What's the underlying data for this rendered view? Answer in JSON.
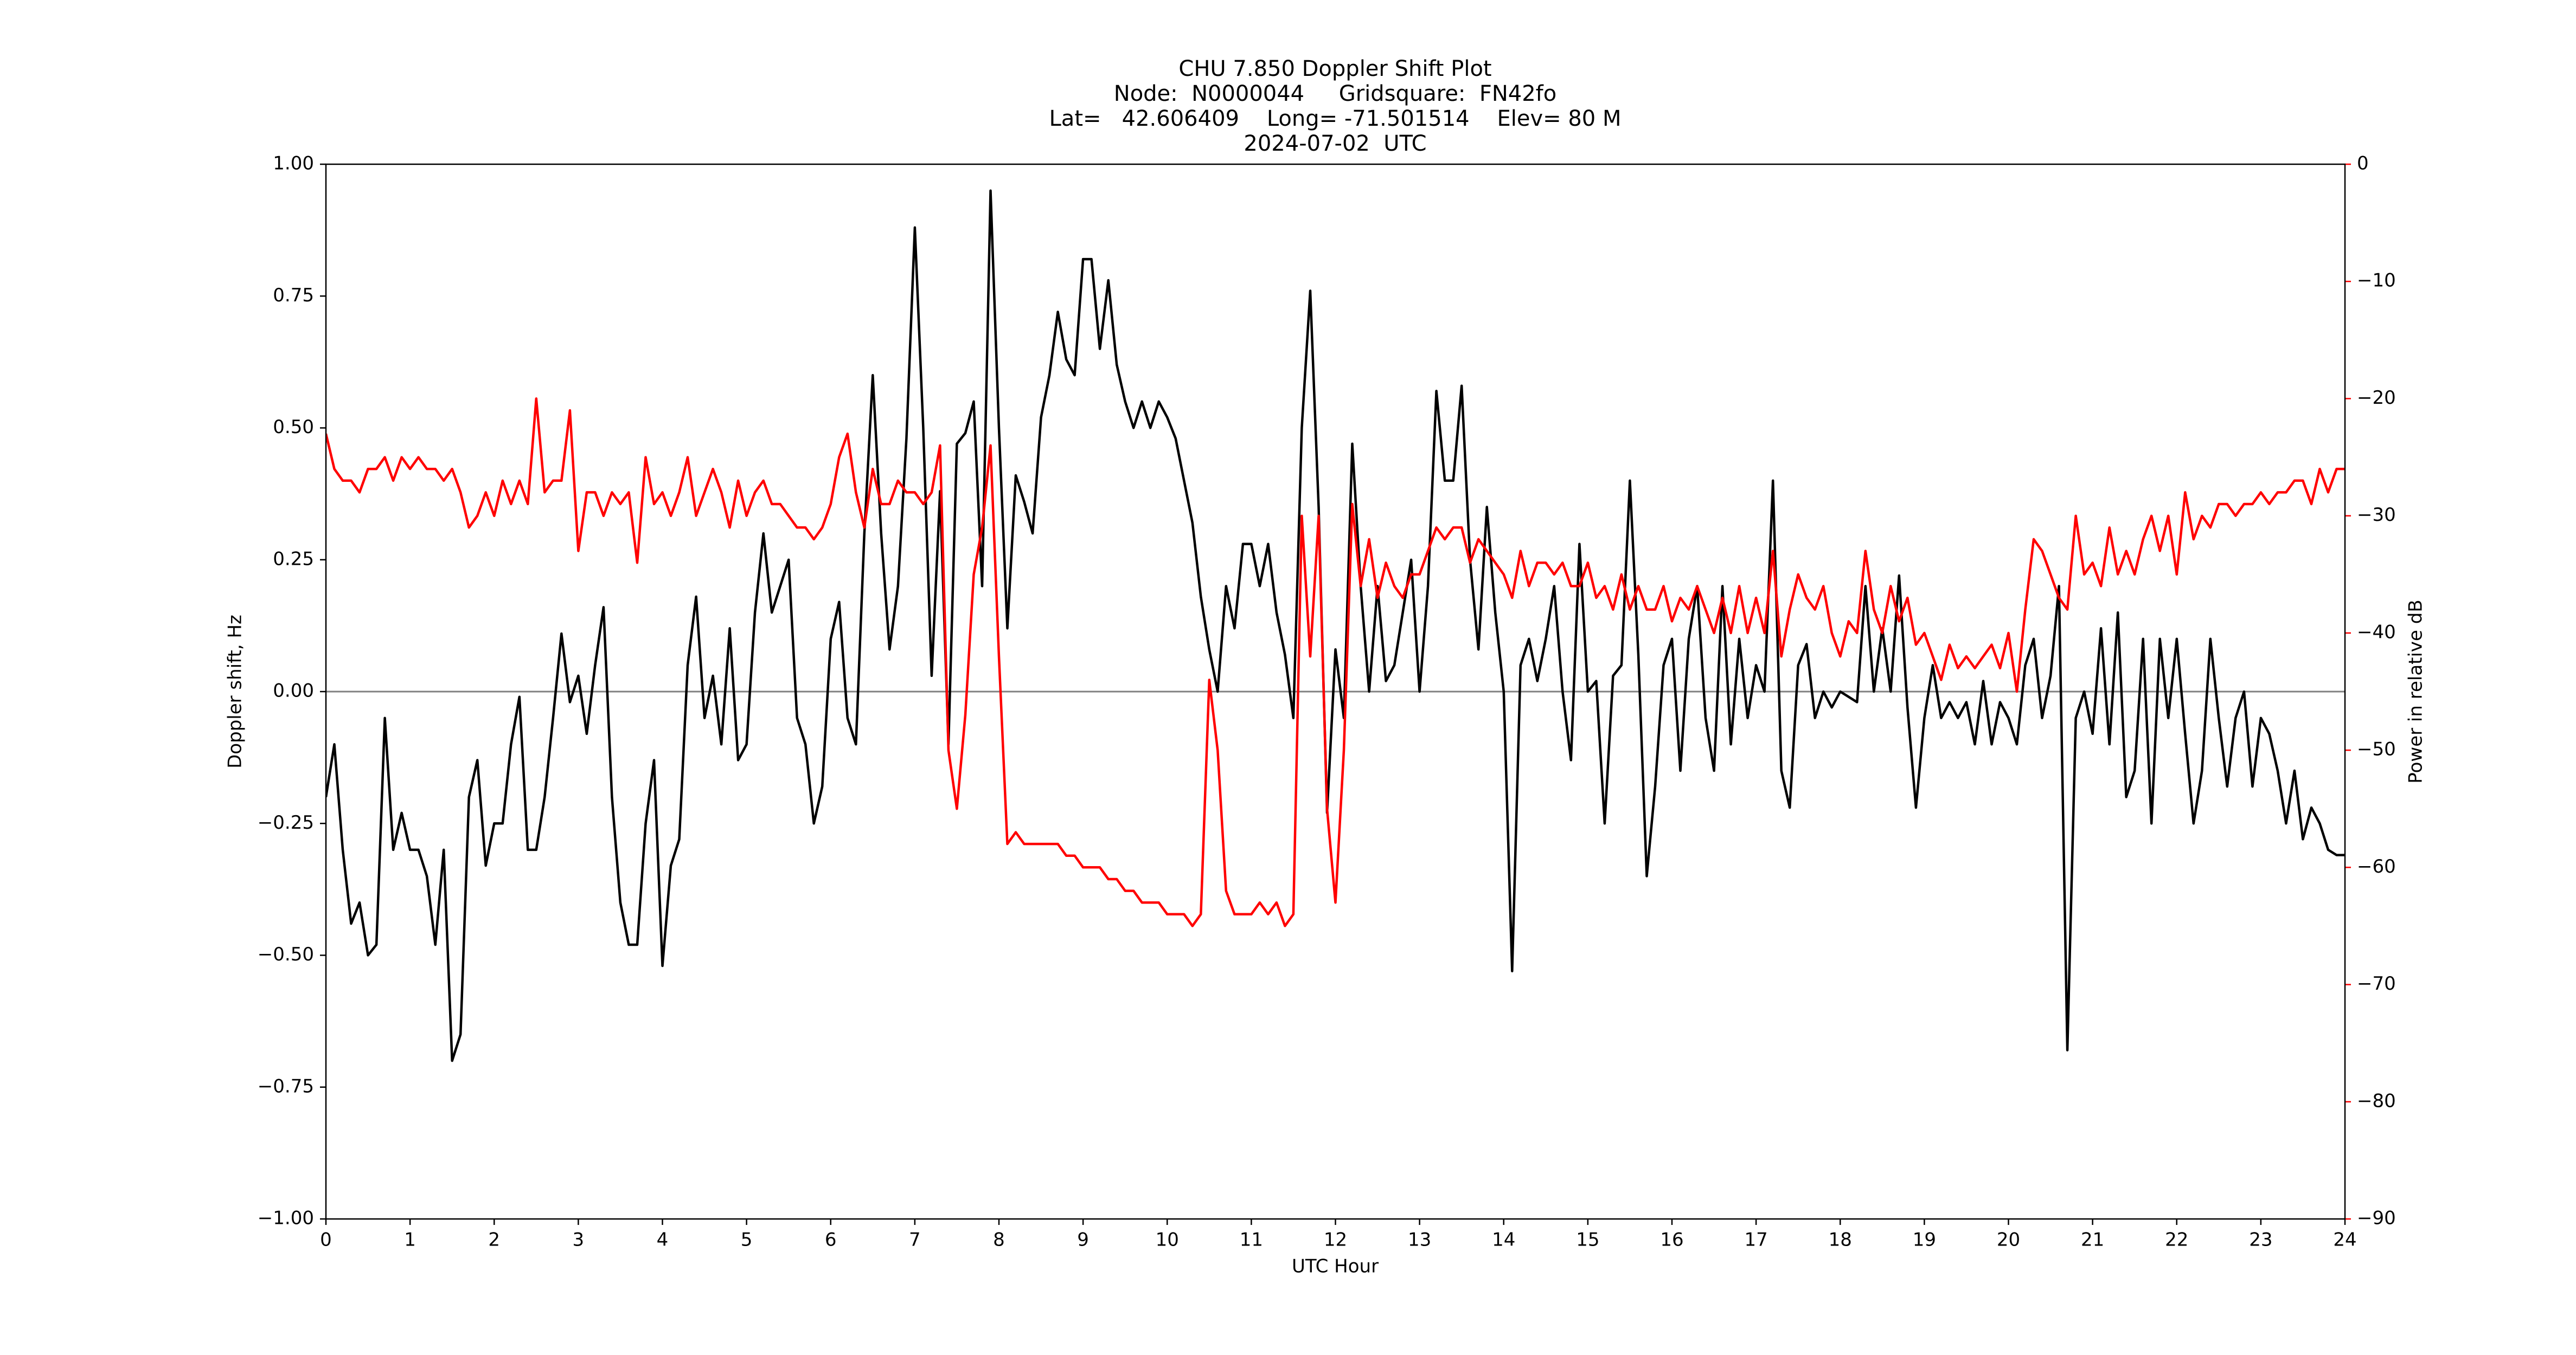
{
  "chart_data": {
    "type": "line",
    "title": [
      "CHU 7.850 Doppler Shift Plot",
      "Node:  N0000044     Gridsquare:  FN42fo",
      "Lat=   42.606409    Long= -71.501514    Elev= 80 M",
      "2024-07-02  UTC"
    ],
    "xlabel": "UTC Hour",
    "ylabel": "Doppler shift, Hz",
    "y2label": "Power in relative dB",
    "xlim": [
      0,
      24
    ],
    "xticks": [
      0,
      1,
      2,
      3,
      4,
      5,
      6,
      7,
      8,
      9,
      10,
      11,
      12,
      13,
      14,
      15,
      16,
      17,
      18,
      19,
      20,
      21,
      22,
      23,
      24
    ],
    "ylim": [
      -1,
      1
    ],
    "yticks": [
      {
        "value": -1,
        "label": "−1.00"
      },
      {
        "value": -0.75,
        "label": "−0.75"
      },
      {
        "value": -0.5,
        "label": "−0.50"
      },
      {
        "value": -0.25,
        "label": "−0.25"
      },
      {
        "value": 0,
        "label": "0.00"
      },
      {
        "value": 0.25,
        "label": "0.25"
      },
      {
        "value": 0.5,
        "label": "0.50"
      },
      {
        "value": 0.75,
        "label": "0.75"
      },
      {
        "value": 1,
        "label": "1.00"
      }
    ],
    "y2lim": [
      -90,
      0
    ],
    "y2ticks": [
      {
        "value": -90,
        "label": "−90"
      },
      {
        "value": -80,
        "label": "−80"
      },
      {
        "value": -70,
        "label": "−70"
      },
      {
        "value": -60,
        "label": "−60"
      },
      {
        "value": -50,
        "label": "−50"
      },
      {
        "value": -40,
        "label": "−40"
      },
      {
        "value": -30,
        "label": "−30"
      },
      {
        "value": -20,
        "label": "−20"
      },
      {
        "value": -10,
        "label": "−10"
      },
      0
    ],
    "axhline": 0,
    "axhline_color": "#808080",
    "x": [
      0,
      0.1,
      0.2,
      0.3,
      0.4,
      0.5,
      0.6,
      0.7,
      0.8,
      0.9,
      1,
      1.1,
      1.2,
      1.3,
      1.4,
      1.5,
      1.6,
      1.7,
      1.8,
      1.9,
      2,
      2.1,
      2.2,
      2.3,
      2.4,
      2.5,
      2.6,
      2.7,
      2.8,
      2.9,
      3,
      3.1,
      3.2,
      3.3,
      3.4,
      3.5,
      3.6,
      3.7,
      3.8,
      3.9,
      4,
      4.1,
      4.2,
      4.3,
      4.4,
      4.5,
      4.6,
      4.7,
      4.8,
      4.9,
      5,
      5.1,
      5.2,
      5.3,
      5.4,
      5.5,
      5.6,
      5.7,
      5.8,
      5.9,
      6,
      6.1,
      6.2,
      6.3,
      6.4,
      6.5,
      6.6,
      6.7,
      6.8,
      6.9,
      7,
      7.1,
      7.2,
      7.3,
      7.4,
      7.5,
      7.6,
      7.7,
      7.8,
      7.9,
      8,
      8.1,
      8.2,
      8.3,
      8.4,
      8.5,
      8.6,
      8.7,
      8.8,
      8.9,
      9,
      9.1,
      9.2,
      9.3,
      9.4,
      9.5,
      9.6,
      9.7,
      9.8,
      9.9,
      10,
      10.1,
      10.2,
      10.3,
      10.4,
      10.5,
      10.6,
      10.7,
      10.8,
      10.9,
      11,
      11.1,
      11.2,
      11.3,
      11.4,
      11.5,
      11.6,
      11.7,
      11.8,
      11.9,
      12,
      12.1,
      12.2,
      12.3,
      12.4,
      12.5,
      12.6,
      12.7,
      12.8,
      12.9,
      13,
      13.1,
      13.2,
      13.3,
      13.4,
      13.5,
      13.6,
      13.7,
      13.8,
      13.9,
      14,
      14.1,
      14.2,
      14.3,
      14.4,
      14.5,
      14.6,
      14.7,
      14.8,
      14.9,
      15,
      15.1,
      15.2,
      15.3,
      15.4,
      15.5,
      15.6,
      15.7,
      15.8,
      15.9,
      16,
      16.1,
      16.2,
      16.3,
      16.4,
      16.5,
      16.6,
      16.7,
      16.8,
      16.9,
      17,
      17.1,
      17.2,
      17.3,
      17.4,
      17.5,
      17.6,
      17.7,
      17.8,
      17.9,
      18,
      18.1,
      18.2,
      18.3,
      18.4,
      18.5,
      18.6,
      18.7,
      18.8,
      18.9,
      19,
      19.1,
      19.2,
      19.3,
      19.4,
      19.5,
      19.6,
      19.7,
      19.8,
      19.9,
      20,
      20.1,
      20.2,
      20.3,
      20.4,
      20.5,
      20.6,
      20.7,
      20.8,
      20.9,
      21,
      21.1,
      21.2,
      21.3,
      21.4,
      21.5,
      21.6,
      21.7,
      21.8,
      21.9,
      22,
      22.1,
      22.2,
      22.3,
      22.4,
      22.5,
      22.6,
      22.7,
      22.8,
      22.9,
      23,
      23.1,
      23.2,
      23.3,
      23.4,
      23.5,
      23.6,
      23.7,
      23.8,
      23.9,
      24
    ],
    "series": [
      {
        "color": "#000000",
        "values": [
          -0.2,
          -0.1,
          -0.3,
          -0.44,
          -0.4,
          -0.5,
          -0.48,
          -0.05,
          -0.3,
          -0.23,
          -0.3,
          -0.3,
          -0.35,
          -0.48,
          -0.3,
          -0.7,
          -0.65,
          -0.2,
          -0.13,
          -0.33,
          -0.25,
          -0.25,
          -0.1,
          -0.01,
          -0.3,
          -0.3,
          -0.2,
          -0.05,
          0.11,
          -0.02,
          0.03,
          -0.08,
          0.05,
          0.16,
          -0.2,
          -0.4,
          -0.48,
          -0.48,
          -0.25,
          -0.13,
          -0.52,
          -0.33,
          -0.28,
          0.05,
          0.18,
          -0.05,
          0.03,
          -0.1,
          0.12,
          -0.13,
          -0.1,
          0.15,
          0.3,
          0.15,
          0.2,
          0.25,
          -0.05,
          -0.1,
          -0.25,
          -0.18,
          0.1,
          0.17,
          -0.05,
          -0.1,
          0.3,
          0.6,
          0.3,
          0.08,
          0.2,
          0.48,
          0.88,
          0.5,
          0.03,
          0.38,
          -0.1,
          0.47,
          0.49,
          0.55,
          0.2,
          0.95,
          0.5,
          0.12,
          0.41,
          0.36,
          0.3,
          0.52,
          0.6,
          0.72,
          0.63,
          0.6,
          0.82,
          0.82,
          0.65,
          0.78,
          0.62,
          0.55,
          0.5,
          0.55,
          0.5,
          0.55,
          0.52,
          0.48,
          0.4,
          0.32,
          0.18,
          0.08,
          0.0,
          0.2,
          0.12,
          0.28,
          0.28,
          0.2,
          0.28,
          0.15,
          0.07,
          -0.05,
          0.5,
          0.76,
          0.35,
          -0.23,
          0.08,
          -0.05,
          0.47,
          0.2,
          0.0,
          0.2,
          0.02,
          0.05,
          0.15,
          0.25,
          0.0,
          0.2,
          0.57,
          0.4,
          0.4,
          0.58,
          0.25,
          0.08,
          0.35,
          0.15,
          0.0,
          -0.53,
          0.05,
          0.1,
          0.02,
          0.1,
          0.2,
          0.0,
          -0.13,
          0.28,
          0.0,
          0.02,
          -0.25,
          0.03,
          0.05,
          0.4,
          0.07,
          -0.35,
          -0.18,
          0.05,
          0.1,
          -0.15,
          0.1,
          0.2,
          -0.05,
          -0.15,
          0.2,
          -0.1,
          0.1,
          -0.05,
          0.05,
          0.0,
          0.4,
          -0.15,
          -0.22,
          0.05,
          0.09,
          -0.05,
          0.0,
          -0.03,
          0.0,
          -0.01,
          -0.02,
          0.2,
          0.0,
          0.12,
          0.0,
          0.22,
          -0.03,
          -0.22,
          -0.05,
          0.05,
          -0.05,
          -0.02,
          -0.05,
          -0.02,
          -0.1,
          0.02,
          -0.1,
          -0.02,
          -0.05,
          -0.1,
          0.05,
          0.1,
          -0.05,
          0.03,
          0.2,
          -0.68,
          -0.05,
          0.0,
          -0.08,
          0.12,
          -0.1,
          0.15,
          -0.2,
          -0.15,
          0.1,
          -0.25,
          0.1,
          -0.05,
          0.1,
          -0.08,
          -0.25,
          -0.15,
          0.1,
          -0.05,
          -0.18,
          -0.05,
          0.0,
          -0.18,
          -0.05,
          -0.08,
          -0.15,
          -0.25,
          -0.15,
          -0.28,
          -0.22,
          -0.25,
          -0.3,
          -0.31,
          -0.31
        ]
      },
      {
        "color": "#ff0000",
        "axis": "y2",
        "values": [
          -23,
          -26,
          -27,
          -27,
          -28,
          -26,
          -26,
          -25,
          -27,
          -25,
          -26,
          -25,
          -26,
          -26,
          -27,
          -26,
          -28,
          -31,
          -30,
          -28,
          -30,
          -27,
          -29,
          -27,
          -29,
          -20,
          -28,
          -27,
          -27,
          -21,
          -33,
          -28,
          -28,
          -30,
          -28,
          -29,
          -28,
          -34,
          -25,
          -29,
          -28,
          -30,
          -28,
          -25,
          -30,
          -28,
          -26,
          -28,
          -31,
          -27,
          -30,
          -28,
          -27,
          -29,
          -29,
          -30,
          -31,
          -31,
          -32,
          -31,
          -29,
          -25,
          -23,
          -28,
          -31,
          -26,
          -29,
          -29,
          -27,
          -28,
          -28,
          -29,
          -28,
          -24,
          -50,
          -55,
          -47,
          -35,
          -31,
          -24,
          -42,
          -58,
          -57,
          -58,
          -58,
          -58,
          -58,
          -58,
          -59,
          -59,
          -60,
          -60,
          -60,
          -61,
          -61,
          -62,
          -62,
          -63,
          -63,
          -63,
          -64,
          -64,
          -64,
          -65,
          -64,
          -44,
          -50,
          -62,
          -64,
          -64,
          -64,
          -63,
          -64,
          -63,
          -65,
          -64,
          -30,
          -42,
          -30,
          -55,
          -63,
          -50,
          -29,
          -36,
          -32,
          -37,
          -34,
          -36,
          -37,
          -35,
          -35,
          -33,
          -31,
          -32,
          -31,
          -31,
          -34,
          -32,
          -33,
          -34,
          -35,
          -37,
          -33,
          -36,
          -34,
          -34,
          -35,
          -34,
          -36,
          -36,
          -34,
          -37,
          -36,
          -38,
          -35,
          -38,
          -36,
          -38,
          -38,
          -36,
          -39,
          -37,
          -38,
          -36,
          -38,
          -40,
          -37,
          -40,
          -36,
          -40,
          -37,
          -40,
          -33,
          -42,
          -38,
          -35,
          -37,
          -38,
          -36,
          -40,
          -42,
          -39,
          -40,
          -33,
          -38,
          -40,
          -36,
          -39,
          -37,
          -41,
          -40,
          -42,
          -44,
          -41,
          -43,
          -42,
          -43,
          -42,
          -41,
          -43,
          -40,
          -45,
          -38,
          -32,
          -33,
          -35,
          -37,
          -38,
          -30,
          -35,
          -34,
          -36,
          -31,
          -35,
          -33,
          -35,
          -32,
          -30,
          -33,
          -30,
          -35,
          -28,
          -32,
          -30,
          -31,
          -29,
          -29,
          -30,
          -29,
          -29,
          -28,
          -29,
          -28,
          -28,
          -27,
          -27,
          -29,
          -26,
          -28,
          -26,
          -26
        ]
      }
    ]
  }
}
